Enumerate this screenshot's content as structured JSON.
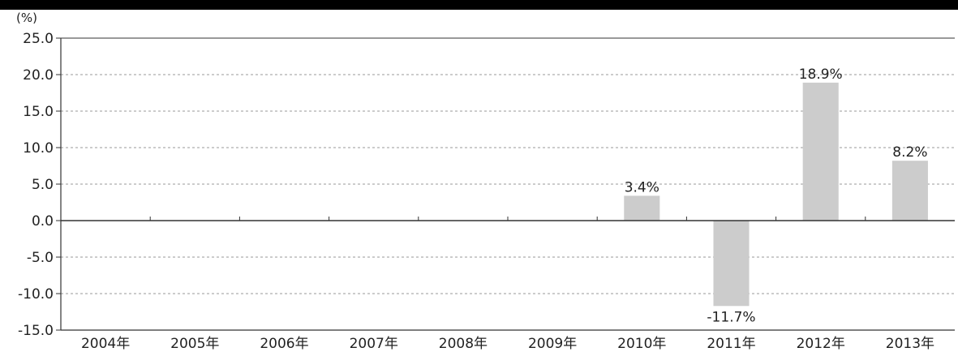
{
  "chart_data": {
    "type": "bar",
    "title": "",
    "unit_label": "(%)",
    "categories": [
      "2004年",
      "2005年",
      "2006年",
      "2007年",
      "2008年",
      "2009年",
      "2010年",
      "2011年",
      "2012年",
      "2013年"
    ],
    "values": [
      null,
      null,
      null,
      null,
      null,
      null,
      3.4,
      -11.7,
      18.9,
      8.2
    ],
    "data_labels": [
      "",
      "",
      "",
      "",
      "",
      "",
      "3.4%",
      "-11.7%",
      "18.9%",
      "8.2%"
    ],
    "ylim": [
      -15.0,
      25.0
    ],
    "yticks": [
      "25.0",
      "20.0",
      "15.0",
      "10.0",
      "5.0",
      "0.0",
      "-5.0",
      "-10.0",
      "-15.0"
    ],
    "grid": true,
    "bar_color": "#cccccc",
    "grid_color": "#9a9a9a",
    "axis_color": "#333333"
  }
}
